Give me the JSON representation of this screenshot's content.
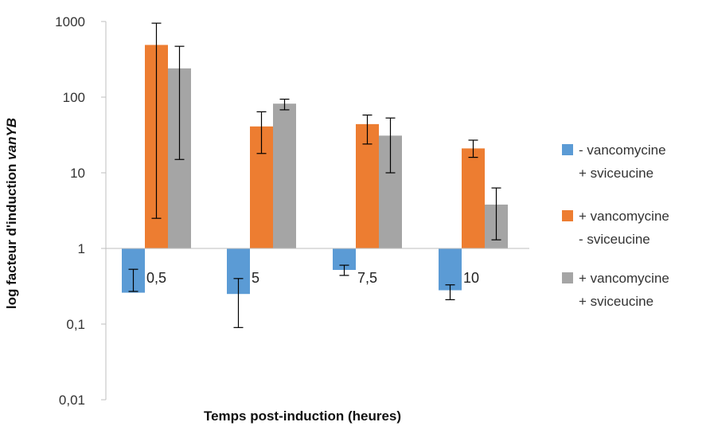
{
  "chart_data": {
    "type": "bar",
    "title": "",
    "xlabel": "Temps post-induction (heures)",
    "ylabel_prefix": "log facteur d'induction ",
    "ylabel_italic": "vanYB",
    "y_scale": "log",
    "ylim": [
      0.01,
      1000
    ],
    "y_ticks": [
      0.01,
      0.1,
      1,
      10,
      100,
      1000
    ],
    "y_tick_labels": [
      "0,01",
      "0,1",
      "1",
      "10",
      "100",
      "1000"
    ],
    "baseline": 1,
    "grid": false,
    "legend_position": "right",
    "categories": [
      "0,5",
      "5",
      "7,5",
      "10"
    ],
    "series": [
      {
        "name_line1": "- vancomycine",
        "name_line2": "+ sviceucine",
        "color": "#5B9BD5",
        "values": [
          0.26,
          0.25,
          0.52,
          0.28
        ],
        "error_low": [
          0.27,
          0.09,
          0.44,
          0.21
        ],
        "error_high": [
          0.53,
          0.4,
          0.6,
          0.33
        ]
      },
      {
        "name_line1": "+ vancomycine",
        "name_line2": "- sviceucine",
        "color": "#ED7D31",
        "values": [
          490,
          41,
          44,
          21
        ],
        "error_low": [
          2.5,
          18,
          24,
          16
        ],
        "error_high": [
          950,
          64,
          58,
          27
        ]
      },
      {
        "name_line1": "+ vancomycine",
        "name_line2": "+ sviceucine",
        "color": "#A5A5A5",
        "values": [
          240,
          82,
          31,
          3.8
        ],
        "error_low": [
          15,
          68,
          10,
          1.3
        ],
        "error_high": [
          470,
          94,
          53,
          6.3
        ]
      }
    ]
  }
}
